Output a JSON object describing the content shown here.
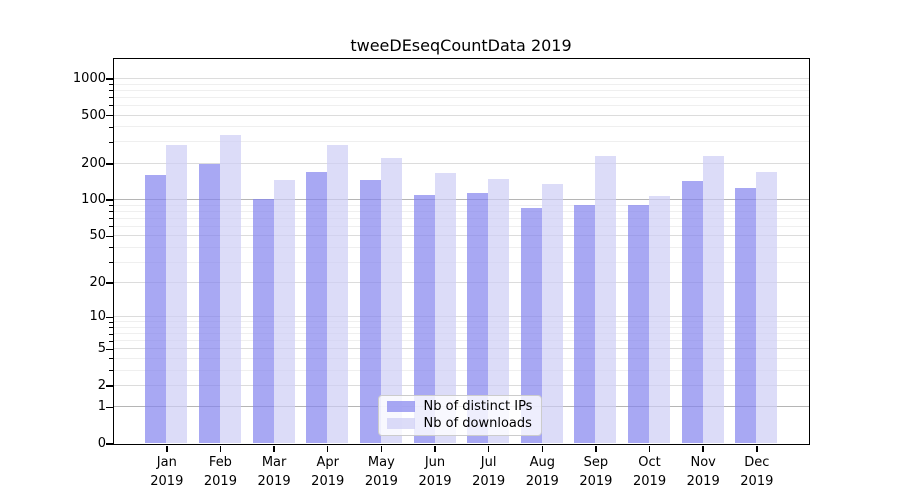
{
  "title": "tweeDEseqCountData 2019",
  "chart_data": {
    "type": "bar",
    "title": "tweeDEseqCountData 2019",
    "categories": [
      "Jan",
      "Feb",
      "Mar",
      "Apr",
      "May",
      "Jun",
      "Jul",
      "Aug",
      "Sep",
      "Oct",
      "Nov",
      "Dec"
    ],
    "category_year": "2019",
    "series": [
      {
        "name": "Nb of distinct IPs",
        "color": "#8383ee",
        "alpha": 0.7,
        "values": [
          160,
          197,
          102,
          171,
          145,
          110,
          113,
          86,
          91,
          90,
          142,
          126
        ]
      },
      {
        "name": "Nb of downloads",
        "color": "#cdcdf5",
        "alpha": 0.7,
        "values": [
          285,
          340,
          145,
          282,
          220,
          166,
          148,
          134,
          228,
          108,
          228,
          171
        ]
      }
    ],
    "xlabel": "",
    "ylabel": "",
    "yscale": "log1p",
    "ylim": [
      0,
      1460
    ],
    "yticks": [
      0,
      1,
      2,
      5,
      10,
      20,
      50,
      100,
      200,
      500,
      1000
    ],
    "minor_yticks": [
      3,
      4,
      6,
      7,
      8,
      9,
      30,
      40,
      60,
      70,
      80,
      90,
      300,
      400,
      600,
      700,
      800,
      900
    ],
    "emphasized_gridlines": [
      1,
      100
    ],
    "grid": true,
    "legend_position": "lower center"
  },
  "legend": {
    "items": [
      {
        "label": "Nb of distinct IPs",
        "color": "rgba(131,131,238,0.7)"
      },
      {
        "label": "Nb of downloads",
        "color": "rgba(205,205,245,0.7)"
      }
    ]
  },
  "colors": {
    "bar_distinct_ips": "#8383ee",
    "bar_downloads": "#cdcdf5",
    "grid_minor": "#efefef",
    "grid_major": "#dcdcdc",
    "grid_emphasis": "#b5b5b5",
    "axis": "#000000",
    "legend_border": "#cccccc"
  }
}
